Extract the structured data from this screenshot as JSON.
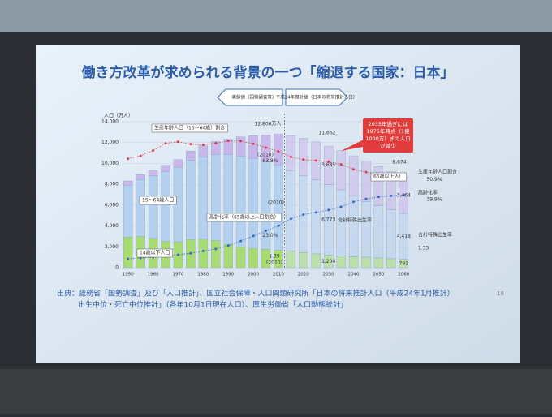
{
  "title": "働き方改革が求められる背景の一つ「縮退する国家：日本」",
  "page_number": "18",
  "source": [
    "出典：総務省「国勢調査」及び「人口推計」、国立社会保障・人口問題研究所「日本の将来推計人口（平成24年1月推計）",
    "出生中位・死亡中位推計」（各年10月1日現在人口）、厚生労働省「人口動態統計」"
  ],
  "period_labels": [
    "実績値（国勢調査等）",
    "平成24年推計値（日本の将来推計人口）"
  ],
  "callout": [
    "2035年過ぎには",
    "1975年時点（1億",
    "1000万）まで人口",
    "が減少"
  ],
  "chart_data": {
    "type": "bar",
    "stacked": true,
    "y_label": "人口（万人）",
    "categories": [
      "1950",
      null,
      "1960",
      null,
      "1970",
      null,
      "1980",
      null,
      "1990",
      null,
      "2000",
      null,
      "2010",
      null,
      "2020",
      null,
      "2030",
      null,
      "2040",
      null,
      "2050",
      null,
      "2060"
    ],
    "ylim": [
      0,
      14000
    ],
    "yticks": [
      0,
      {
        "value": 2000,
        "label": "2,000"
      },
      {
        "value": 4000,
        "label": "4,000"
      },
      {
        "value": 6000,
        "label": "6,000"
      },
      {
        "value": 8000,
        "label": "8,000"
      },
      {
        "value": 10000,
        "label": "10,000"
      },
      {
        "value": 12000,
        "label": "12,000"
      },
      {
        "value": 14000,
        "label": "14,000"
      }
    ],
    "y2lim": [
      0,
      80
    ],
    "series": [
      {
        "name": "14歳以下人口",
        "color": "#a6dc72",
        "values": [
          2943,
          2980,
          2807,
          2517,
          2482,
          2722,
          2751,
          2603,
          2249,
          2001,
          1847,
          1759,
          1680,
          1583,
          1457,
          1324,
          1204,
          1129,
          1073,
          1012,
          939,
          861,
          791
        ],
        "value_labels": [
          null,
          null,
          null,
          null,
          null,
          null,
          null,
          null,
          null,
          null,
          null,
          null,
          null,
          null,
          null,
          null,
          "1,204",
          null,
          null,
          null,
          null,
          null,
          "791"
        ]
      },
      {
        "name": "15～64歳人口",
        "color": "#b4d0ef",
        "values": [
          4966,
          5473,
          6000,
          6693,
          7157,
          7581,
          7883,
          8251,
          8590,
          8716,
          8622,
          8409,
          8173,
          7682,
          7341,
          7085,
          6773,
          6343,
          5787,
          5353,
          5001,
          4706,
          4418
        ],
        "value_labels": [
          null,
          null,
          null,
          null,
          null,
          null,
          null,
          null,
          null,
          null,
          null,
          null,
          null,
          null,
          null,
          null,
          "6,773",
          null,
          null,
          null,
          null,
          null,
          "4,418"
        ]
      },
      {
        "name": "65歳以上人口",
        "color": "#c8b7ea",
        "values": [
          411,
          475,
          535,
          618,
          733,
          887,
          1065,
          1247,
          1489,
          1826,
          2204,
          2576,
          2948,
          3395,
          3612,
          3657,
          3685,
          3741,
          3868,
          3856,
          3768,
          3626,
          3464
        ],
        "value_labels": [
          null,
          null,
          null,
          null,
          null,
          null,
          null,
          null,
          null,
          null,
          null,
          null,
          null,
          null,
          null,
          null,
          "3,685",
          null,
          null,
          null,
          null,
          null,
          "3,464"
        ]
      },
      {
        "name": "生産年齢人口（15～64歳）割合",
        "type": "line",
        "axis": "y2",
        "color": "#d8404c",
        "values": [
          59.7,
          61.3,
          64.2,
          68.1,
          69.0,
          67.7,
          67.3,
          68.2,
          69.5,
          69.4,
          67.9,
          65.8,
          63.8,
          60.7,
          59.2,
          58.7,
          58.1,
          56.6,
          53.9,
          52.4,
          51.5,
          51.2,
          50.9
        ],
        "value_labels": [
          null,
          null,
          null,
          null,
          null,
          null,
          null,
          null,
          null,
          null,
          null,
          null,
          "63.8%",
          null,
          null,
          null,
          null,
          null,
          null,
          null,
          null,
          null,
          "50.9%"
        ]
      },
      {
        "name": "高齢化率（65歳以上人口割合）",
        "type": "line",
        "axis": "y2",
        "color": "#3a68cf",
        "values": [
          4.9,
          5.3,
          5.7,
          6.3,
          7.1,
          7.9,
          9.1,
          10.3,
          12.1,
          14.6,
          17.4,
          20.2,
          23.0,
          26.8,
          29.1,
          30.3,
          31.6,
          33.4,
          36.1,
          37.7,
          38.8,
          39.4,
          39.9
        ],
        "value_labels": [
          null,
          null,
          null,
          null,
          null,
          null,
          null,
          null,
          null,
          null,
          null,
          null,
          "23.0%",
          null,
          null,
          null,
          null,
          null,
          null,
          null,
          null,
          null,
          "39.9%"
        ]
      }
    ],
    "annotations": [
      "12,806万人",
      "(2010)",
      "(2010)",
      "1.39",
      "(2010)",
      "11,662",
      "8,674",
      "65歳以上人口",
      "合計特殊出生率",
      "生産年齢人口割合",
      "高齢化率",
      "合計特殊出生率",
      "1.35"
    ]
  }
}
